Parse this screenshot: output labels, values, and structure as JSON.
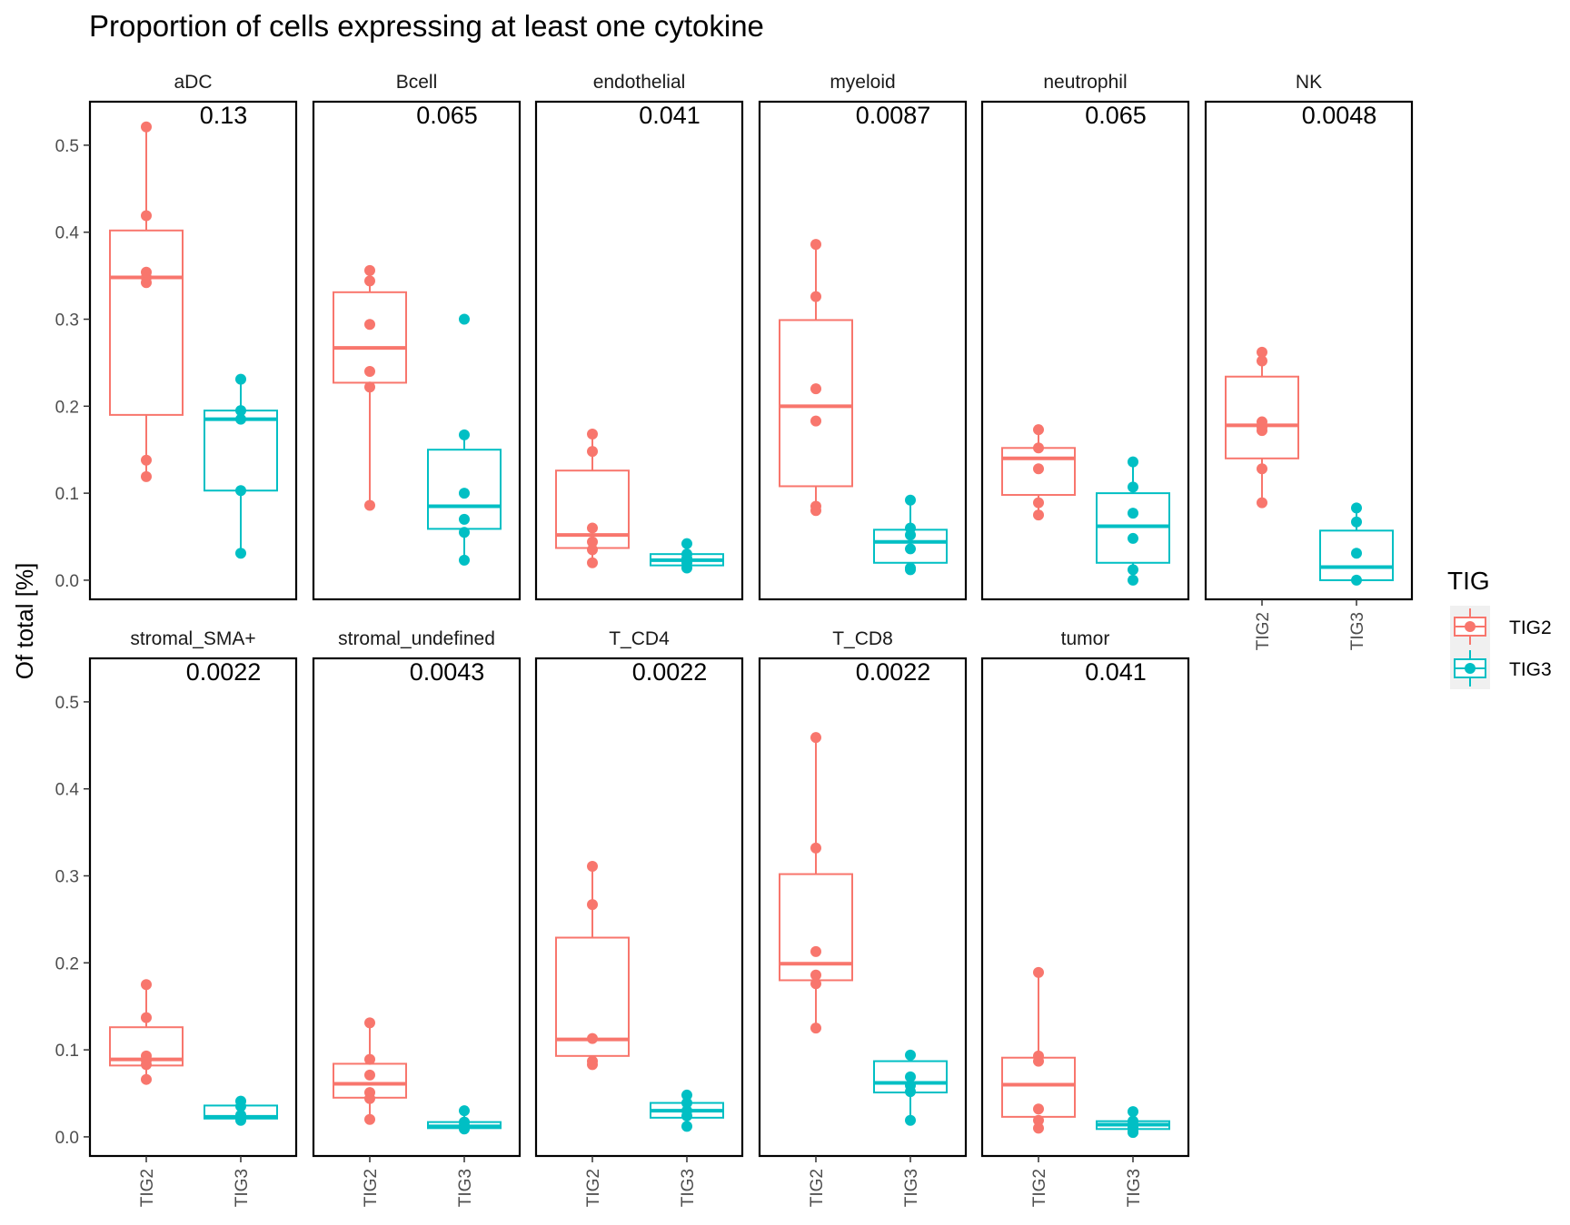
{
  "chart_data": {
    "type": "boxplot",
    "title": "Proportion of cells expressing at least one cytokine",
    "xlabel": "",
    "ylabel": "Of total [%]",
    "ylim": [
      -0.022,
      0.55
    ],
    "y_ticks": [
      "0.0",
      "0.1",
      "0.2",
      "0.3",
      "0.4",
      "0.5"
    ],
    "categories": [
      "TIG2",
      "TIG3"
    ],
    "legend": {
      "title": "TIG",
      "position": "right",
      "items": [
        {
          "label": "TIG2",
          "color": "#F8766D"
        },
        {
          "label": "TIG3",
          "color": "#00BFC4"
        }
      ]
    },
    "grid": false,
    "facets": [
      {
        "name": "aDC",
        "pvalue": "0.13",
        "groups": [
          {
            "group": "TIG2",
            "box": {
              "q1": 0.19,
              "median": 0.348,
              "q3": 0.402,
              "lower": 0.119,
              "upper": 0.521
            },
            "points": [
              0.521,
              0.419,
              0.354,
              0.348,
              0.342,
              0.138,
              0.119
            ]
          },
          {
            "group": "TIG3",
            "box": {
              "q1": 0.103,
              "median": 0.185,
              "q3": 0.195,
              "lower": 0.031,
              "upper": 0.231
            },
            "points": [
              0.231,
              0.195,
              0.185,
              0.103,
              0.031
            ]
          }
        ]
      },
      {
        "name": "Bcell",
        "pvalue": "0.065",
        "groups": [
          {
            "group": "TIG2",
            "box": {
              "q1": 0.227,
              "median": 0.267,
              "q3": 0.331,
              "lower": 0.086,
              "upper": 0.356
            },
            "points": [
              0.356,
              0.344,
              0.294,
              0.24,
              0.222,
              0.086
            ]
          },
          {
            "group": "TIG3",
            "box": {
              "q1": 0.059,
              "median": 0.085,
              "q3": 0.15,
              "lower": 0.023,
              "upper": 0.167
            },
            "points": [
              0.3,
              0.167,
              0.1,
              0.07,
              0.055,
              0.023
            ]
          }
        ]
      },
      {
        "name": "endothelial",
        "pvalue": "0.041",
        "groups": [
          {
            "group": "TIG2",
            "box": {
              "q1": 0.037,
              "median": 0.052,
              "q3": 0.126,
              "lower": 0.02,
              "upper": 0.168
            },
            "points": [
              0.168,
              0.148,
              0.06,
              0.044,
              0.035,
              0.02
            ]
          },
          {
            "group": "TIG3",
            "box": {
              "q1": 0.017,
              "median": 0.023,
              "q3": 0.03,
              "lower": 0.014,
              "upper": 0.042
            },
            "points": [
              0.042,
              0.03,
              0.025,
              0.02,
              0.014
            ]
          }
        ]
      },
      {
        "name": "myeloid",
        "pvalue": "0.0087",
        "groups": [
          {
            "group": "TIG2",
            "box": {
              "q1": 0.108,
              "median": 0.2,
              "q3": 0.299,
              "lower": 0.08,
              "upper": 0.386
            },
            "points": [
              0.386,
              0.326,
              0.22,
              0.183,
              0.085,
              0.08
            ]
          },
          {
            "group": "TIG3",
            "box": {
              "q1": 0.02,
              "median": 0.044,
              "q3": 0.058,
              "lower": 0.012,
              "upper": 0.092
            },
            "points": [
              0.092,
              0.06,
              0.052,
              0.036,
              0.014,
              0.012
            ]
          }
        ]
      },
      {
        "name": "neutrophil",
        "pvalue": "0.065",
        "groups": [
          {
            "group": "TIG2",
            "box": {
              "q1": 0.098,
              "median": 0.14,
              "q3": 0.152,
              "lower": 0.075,
              "upper": 0.173
            },
            "points": [
              0.173,
              0.152,
              0.128,
              0.089,
              0.075
            ]
          },
          {
            "group": "TIG3",
            "box": {
              "q1": 0.02,
              "median": 0.062,
              "q3": 0.1,
              "lower": 0.0,
              "upper": 0.136
            },
            "points": [
              0.136,
              0.107,
              0.077,
              0.048,
              0.012,
              0.0
            ]
          }
        ]
      },
      {
        "name": "NK",
        "pvalue": "0.0048",
        "groups": [
          {
            "group": "TIG2",
            "box": {
              "q1": 0.14,
              "median": 0.178,
              "q3": 0.234,
              "lower": 0.089,
              "upper": 0.262
            },
            "points": [
              0.262,
              0.252,
              0.182,
              0.176,
              0.172,
              0.128,
              0.089
            ]
          },
          {
            "group": "TIG3",
            "box": {
              "q1": 0.0,
              "median": 0.015,
              "q3": 0.057,
              "lower": 0.0,
              "upper": 0.083
            },
            "points": [
              0.083,
              0.067,
              0.031,
              0.0
            ]
          }
        ]
      },
      {
        "name": "stromal_SMA+",
        "pvalue": "0.0022",
        "groups": [
          {
            "group": "TIG2",
            "box": {
              "q1": 0.082,
              "median": 0.089,
              "q3": 0.126,
              "lower": 0.066,
              "upper": 0.175
            },
            "points": [
              0.175,
              0.137,
              0.093,
              0.088,
              0.083,
              0.066
            ]
          },
          {
            "group": "TIG3",
            "box": {
              "q1": 0.021,
              "median": 0.023,
              "q3": 0.036,
              "lower": 0.018,
              "upper": 0.041
            },
            "points": [
              0.041,
              0.035,
              0.025,
              0.022,
              0.019
            ]
          }
        ]
      },
      {
        "name": "stromal_undefined",
        "pvalue": "0.0043",
        "groups": [
          {
            "group": "TIG2",
            "box": {
              "q1": 0.045,
              "median": 0.061,
              "q3": 0.084,
              "lower": 0.02,
              "upper": 0.131
            },
            "points": [
              0.131,
              0.089,
              0.071,
              0.051,
              0.044,
              0.02
            ]
          },
          {
            "group": "TIG3",
            "box": {
              "q1": 0.01,
              "median": 0.012,
              "q3": 0.017,
              "lower": 0.009,
              "upper": 0.03
            },
            "points": [
              0.03,
              0.017,
              0.013,
              0.011,
              0.009
            ]
          }
        ]
      },
      {
        "name": "T_CD4",
        "pvalue": "0.0022",
        "groups": [
          {
            "group": "TIG2",
            "box": {
              "q1": 0.093,
              "median": 0.112,
              "q3": 0.229,
              "lower": 0.083,
              "upper": 0.311
            },
            "points": [
              0.311,
              0.267,
              0.113,
              0.087,
              0.083
            ]
          },
          {
            "group": "TIG3",
            "box": {
              "q1": 0.022,
              "median": 0.03,
              "q3": 0.039,
              "lower": 0.012,
              "upper": 0.048
            },
            "points": [
              0.048,
              0.039,
              0.03,
              0.024,
              0.012
            ]
          }
        ]
      },
      {
        "name": "T_CD8",
        "pvalue": "0.0022",
        "groups": [
          {
            "group": "TIG2",
            "box": {
              "q1": 0.18,
              "median": 0.199,
              "q3": 0.302,
              "lower": 0.125,
              "upper": 0.459
            },
            "points": [
              0.459,
              0.332,
              0.213,
              0.186,
              0.176,
              0.125
            ]
          },
          {
            "group": "TIG3",
            "box": {
              "q1": 0.051,
              "median": 0.062,
              "q3": 0.087,
              "lower": 0.019,
              "upper": 0.094
            },
            "points": [
              0.094,
              0.069,
              0.059,
              0.052,
              0.019
            ]
          }
        ]
      },
      {
        "name": "tumor",
        "pvalue": "0.041",
        "groups": [
          {
            "group": "TIG2",
            "box": {
              "q1": 0.023,
              "median": 0.06,
              "q3": 0.091,
              "lower": 0.01,
              "upper": 0.189
            },
            "points": [
              0.189,
              0.093,
              0.087,
              0.032,
              0.019,
              0.01
            ]
          },
          {
            "group": "TIG3",
            "box": {
              "q1": 0.009,
              "median": 0.014,
              "q3": 0.018,
              "lower": 0.005,
              "upper": 0.029
            },
            "points": [
              0.029,
              0.018,
              0.014,
              0.011,
              0.006,
              0.005
            ]
          }
        ]
      }
    ]
  }
}
